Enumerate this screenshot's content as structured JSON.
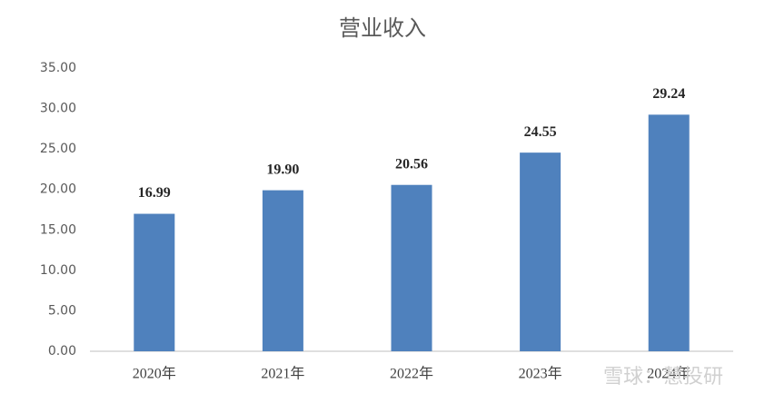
{
  "chart_data": {
    "type": "bar",
    "title": "营业收入",
    "categories": [
      "2020年",
      "2021年",
      "2022年",
      "2023年",
      "2024年"
    ],
    "values": [
      16.99,
      19.9,
      20.56,
      24.55,
      29.24
    ],
    "value_labels": [
      "16.99",
      "19.90",
      "20.56",
      "24.55",
      "29.24"
    ],
    "color": "#4f81bd",
    "ylim": [
      0,
      35
    ],
    "yticks": [
      {
        "value": 0,
        "label": "0.00"
      },
      {
        "value": 5,
        "label": "5.00"
      },
      {
        "value": 10,
        "label": "10.00"
      },
      {
        "value": 15,
        "label": "15.00"
      },
      {
        "value": 20,
        "label": "20.00"
      },
      {
        "value": 25,
        "label": "25.00"
      },
      {
        "value": 30,
        "label": "30.00"
      },
      {
        "value": 35,
        "label": "35.00"
      }
    ],
    "grid": false,
    "watermark": "雪球：慧投研"
  }
}
